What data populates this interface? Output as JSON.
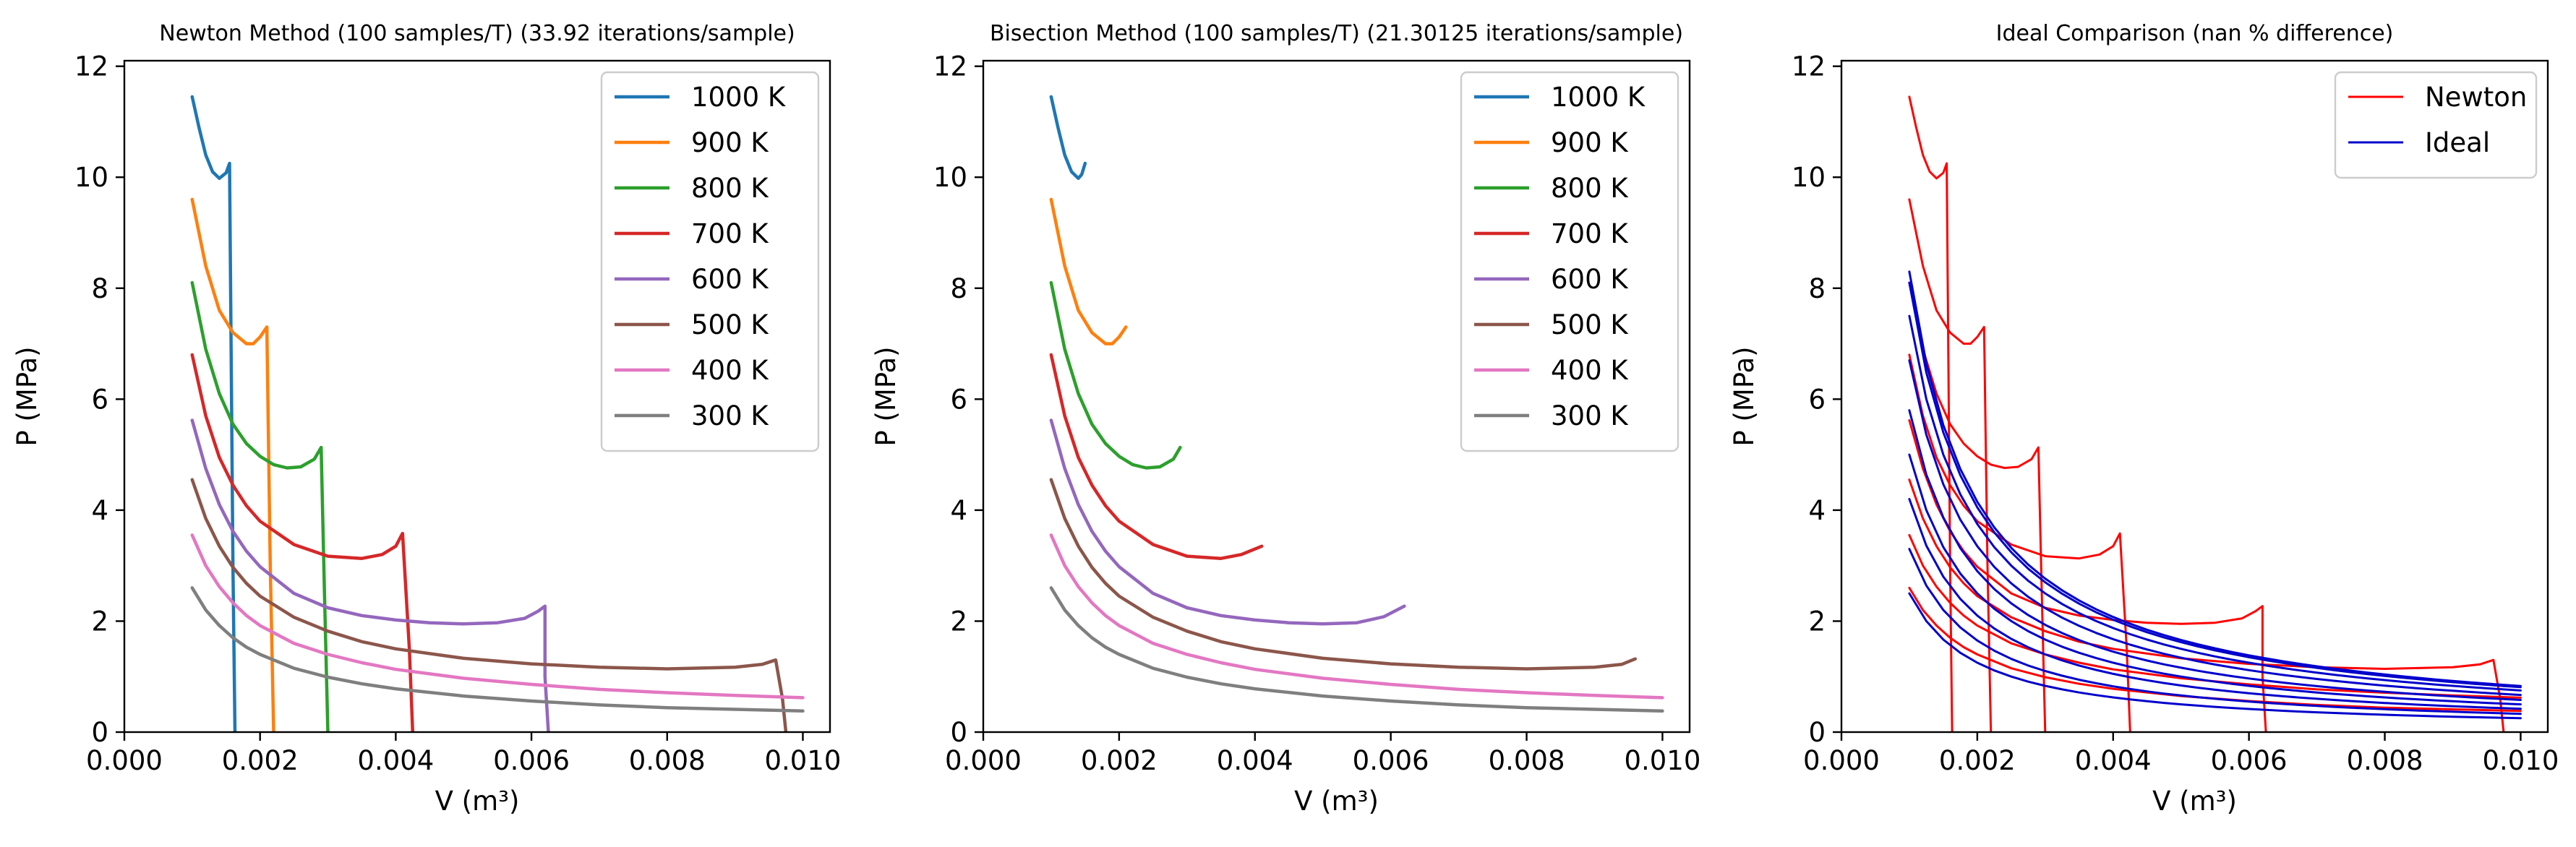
{
  "chart_data": [
    {
      "type": "line",
      "title": "Newton Method (100 samples/T) (33.92 iterations/sample)",
      "xlabel": "V (m³)",
      "ylabel": "P (MPa)",
      "xlim": [
        0,
        0.0104
      ],
      "ylim": [
        0,
        12.1
      ],
      "xticks": [
        "0.000",
        "0.002",
        "0.004",
        "0.006",
        "0.008",
        "0.010"
      ],
      "yticks": [
        "0",
        "2",
        "4",
        "6",
        "8",
        "10",
        "12"
      ],
      "legend": "top-right",
      "grid": false,
      "series": [
        {
          "name": "1000 K",
          "color": "#1f77b4",
          "points": [
            [
              0.001,
              11.45
            ],
            [
              0.0011,
              10.9
            ],
            [
              0.0012,
              10.4
            ],
            [
              0.0013,
              10.1
            ],
            [
              0.0014,
              9.98
            ],
            [
              0.0015,
              10.08
            ],
            [
              0.00155,
              10.25
            ],
            [
              0.0016,
              3.0
            ],
            [
              0.00163,
              0.0
            ]
          ]
        },
        {
          "name": "900 K",
          "color": "#ff7f0e",
          "points": [
            [
              0.001,
              9.6
            ],
            [
              0.0012,
              8.4
            ],
            [
              0.0014,
              7.6
            ],
            [
              0.0016,
              7.2
            ],
            [
              0.0018,
              7.0
            ],
            [
              0.0019,
              7.0
            ],
            [
              0.002,
              7.12
            ],
            [
              0.0021,
              7.3
            ],
            [
              0.00215,
              3.0
            ],
            [
              0.0022,
              0.0
            ]
          ]
        },
        {
          "name": "800 K",
          "color": "#2ca02c",
          "points": [
            [
              0.001,
              8.1
            ],
            [
              0.0012,
              6.9
            ],
            [
              0.0014,
              6.1
            ],
            [
              0.0016,
              5.55
            ],
            [
              0.0018,
              5.2
            ],
            [
              0.002,
              4.97
            ],
            [
              0.0022,
              4.82
            ],
            [
              0.0024,
              4.76
            ],
            [
              0.0026,
              4.78
            ],
            [
              0.0028,
              4.92
            ],
            [
              0.0029,
              5.13
            ],
            [
              0.00295,
              2.5
            ],
            [
              0.003,
              0.0
            ]
          ]
        },
        {
          "name": "700 K",
          "color": "#d62728",
          "points": [
            [
              0.001,
              6.8
            ],
            [
              0.0012,
              5.7
            ],
            [
              0.0014,
              4.95
            ],
            [
              0.0016,
              4.45
            ],
            [
              0.0018,
              4.08
            ],
            [
              0.002,
              3.8
            ],
            [
              0.0025,
              3.38
            ],
            [
              0.003,
              3.17
            ],
            [
              0.0035,
              3.13
            ],
            [
              0.0038,
              3.2
            ],
            [
              0.004,
              3.35
            ],
            [
              0.0041,
              3.58
            ],
            [
              0.0042,
              1.5
            ],
            [
              0.00425,
              0.0
            ]
          ]
        },
        {
          "name": "600 K",
          "color": "#9467bd",
          "points": [
            [
              0.001,
              5.62
            ],
            [
              0.0012,
              4.75
            ],
            [
              0.0014,
              4.1
            ],
            [
              0.0016,
              3.62
            ],
            [
              0.0018,
              3.26
            ],
            [
              0.002,
              2.98
            ],
            [
              0.0025,
              2.5
            ],
            [
              0.003,
              2.24
            ],
            [
              0.0035,
              2.1
            ],
            [
              0.004,
              2.02
            ],
            [
              0.0045,
              1.97
            ],
            [
              0.005,
              1.95
            ],
            [
              0.0055,
              1.97
            ],
            [
              0.0059,
              2.05
            ],
            [
              0.0061,
              2.18
            ],
            [
              0.0062,
              2.27
            ],
            [
              0.0062,
              1.0
            ],
            [
              0.00625,
              0.0
            ]
          ]
        },
        {
          "name": "500 K",
          "color": "#8c564b",
          "points": [
            [
              0.001,
              4.55
            ],
            [
              0.0012,
              3.85
            ],
            [
              0.0014,
              3.35
            ],
            [
              0.0016,
              2.97
            ],
            [
              0.0018,
              2.68
            ],
            [
              0.002,
              2.45
            ],
            [
              0.0025,
              2.07
            ],
            [
              0.003,
              1.82
            ],
            [
              0.0035,
              1.63
            ],
            [
              0.004,
              1.5
            ],
            [
              0.005,
              1.33
            ],
            [
              0.006,
              1.23
            ],
            [
              0.007,
              1.17
            ],
            [
              0.008,
              1.14
            ],
            [
              0.009,
              1.17
            ],
            [
              0.0094,
              1.22
            ],
            [
              0.0096,
              1.3
            ],
            [
              0.0097,
              0.6
            ],
            [
              0.00975,
              0.0
            ]
          ]
        },
        {
          "name": "400 K",
          "color": "#e377c2",
          "points": [
            [
              0.001,
              3.55
            ],
            [
              0.0012,
              3.0
            ],
            [
              0.0014,
              2.62
            ],
            [
              0.0016,
              2.33
            ],
            [
              0.0018,
              2.1
            ],
            [
              0.002,
              1.92
            ],
            [
              0.0025,
              1.6
            ],
            [
              0.003,
              1.4
            ],
            [
              0.0035,
              1.25
            ],
            [
              0.004,
              1.13
            ],
            [
              0.005,
              0.97
            ],
            [
              0.006,
              0.86
            ],
            [
              0.007,
              0.77
            ],
            [
              0.008,
              0.71
            ],
            [
              0.009,
              0.66
            ],
            [
              0.01,
              0.62
            ]
          ]
        },
        {
          "name": "300 K",
          "color": "#7f7f7f",
          "points": [
            [
              0.001,
              2.6
            ],
            [
              0.0012,
              2.2
            ],
            [
              0.0014,
              1.92
            ],
            [
              0.0016,
              1.7
            ],
            [
              0.0018,
              1.53
            ],
            [
              0.002,
              1.4
            ],
            [
              0.0025,
              1.15
            ],
            [
              0.003,
              0.99
            ],
            [
              0.0035,
              0.87
            ],
            [
              0.004,
              0.78
            ],
            [
              0.005,
              0.65
            ],
            [
              0.006,
              0.56
            ],
            [
              0.007,
              0.49
            ],
            [
              0.008,
              0.44
            ],
            [
              0.009,
              0.41
            ],
            [
              0.01,
              0.38
            ]
          ]
        }
      ]
    },
    {
      "type": "line",
      "title": "Bisection Method (100 samples/T) (21.30125 iterations/sample)",
      "xlabel": "V (m³)",
      "ylabel": "P (MPa)",
      "xlim": [
        0,
        0.0104
      ],
      "ylim": [
        0,
        12.1
      ],
      "xticks": [
        "0.000",
        "0.002",
        "0.004",
        "0.006",
        "0.008",
        "0.010"
      ],
      "yticks": [
        "0",
        "2",
        "4",
        "6",
        "8",
        "10",
        "12"
      ],
      "legend": "top-right",
      "grid": false,
      "series": [
        {
          "name": "1000 K",
          "color": "#1f77b4",
          "points": [
            [
              0.001,
              11.45
            ],
            [
              0.0011,
              10.9
            ],
            [
              0.0012,
              10.4
            ],
            [
              0.0013,
              10.1
            ],
            [
              0.0014,
              9.98
            ],
            [
              0.00145,
              10.05
            ],
            [
              0.0015,
              10.25
            ]
          ]
        },
        {
          "name": "900 K",
          "color": "#ff7f0e",
          "points": [
            [
              0.001,
              9.6
            ],
            [
              0.0012,
              8.4
            ],
            [
              0.0014,
              7.6
            ],
            [
              0.0016,
              7.2
            ],
            [
              0.0018,
              7.0
            ],
            [
              0.0019,
              7.0
            ],
            [
              0.002,
              7.12
            ],
            [
              0.0021,
              7.3
            ]
          ]
        },
        {
          "name": "800 K",
          "color": "#2ca02c",
          "points": [
            [
              0.001,
              8.1
            ],
            [
              0.0012,
              6.9
            ],
            [
              0.0014,
              6.1
            ],
            [
              0.0016,
              5.55
            ],
            [
              0.0018,
              5.2
            ],
            [
              0.002,
              4.97
            ],
            [
              0.0022,
              4.82
            ],
            [
              0.0024,
              4.76
            ],
            [
              0.0026,
              4.78
            ],
            [
              0.0028,
              4.92
            ],
            [
              0.0029,
              5.13
            ]
          ]
        },
        {
          "name": "700 K",
          "color": "#d62728",
          "points": [
            [
              0.001,
              6.8
            ],
            [
              0.0012,
              5.7
            ],
            [
              0.0014,
              4.95
            ],
            [
              0.0016,
              4.45
            ],
            [
              0.0018,
              4.08
            ],
            [
              0.002,
              3.8
            ],
            [
              0.0025,
              3.38
            ],
            [
              0.003,
              3.17
            ],
            [
              0.0035,
              3.13
            ],
            [
              0.0038,
              3.2
            ],
            [
              0.0041,
              3.35
            ]
          ]
        },
        {
          "name": "600 K",
          "color": "#9467bd",
          "points": [
            [
              0.001,
              5.62
            ],
            [
              0.0012,
              4.75
            ],
            [
              0.0014,
              4.1
            ],
            [
              0.0016,
              3.62
            ],
            [
              0.0018,
              3.26
            ],
            [
              0.002,
              2.98
            ],
            [
              0.0025,
              2.5
            ],
            [
              0.003,
              2.24
            ],
            [
              0.0035,
              2.1
            ],
            [
              0.004,
              2.02
            ],
            [
              0.0045,
              1.97
            ],
            [
              0.005,
              1.95
            ],
            [
              0.0055,
              1.97
            ],
            [
              0.0059,
              2.08
            ],
            [
              0.0062,
              2.27
            ]
          ]
        },
        {
          "name": "500 K",
          "color": "#8c564b",
          "points": [
            [
              0.001,
              4.55
            ],
            [
              0.0012,
              3.85
            ],
            [
              0.0014,
              3.35
            ],
            [
              0.0016,
              2.97
            ],
            [
              0.0018,
              2.68
            ],
            [
              0.002,
              2.45
            ],
            [
              0.0025,
              2.07
            ],
            [
              0.003,
              1.82
            ],
            [
              0.0035,
              1.63
            ],
            [
              0.004,
              1.5
            ],
            [
              0.005,
              1.33
            ],
            [
              0.006,
              1.23
            ],
            [
              0.007,
              1.17
            ],
            [
              0.008,
              1.14
            ],
            [
              0.009,
              1.17
            ],
            [
              0.0094,
              1.22
            ],
            [
              0.0096,
              1.32
            ]
          ]
        },
        {
          "name": "400 K",
          "color": "#e377c2",
          "points": [
            [
              0.001,
              3.55
            ],
            [
              0.0012,
              3.0
            ],
            [
              0.0014,
              2.62
            ],
            [
              0.0016,
              2.33
            ],
            [
              0.0018,
              2.1
            ],
            [
              0.002,
              1.92
            ],
            [
              0.0025,
              1.6
            ],
            [
              0.003,
              1.4
            ],
            [
              0.0035,
              1.25
            ],
            [
              0.004,
              1.13
            ],
            [
              0.005,
              0.97
            ],
            [
              0.006,
              0.86
            ],
            [
              0.007,
              0.77
            ],
            [
              0.008,
              0.71
            ],
            [
              0.009,
              0.66
            ],
            [
              0.01,
              0.62
            ]
          ]
        },
        {
          "name": "300 K",
          "color": "#7f7f7f",
          "points": [
            [
              0.001,
              2.6
            ],
            [
              0.0012,
              2.2
            ],
            [
              0.0014,
              1.92
            ],
            [
              0.0016,
              1.7
            ],
            [
              0.0018,
              1.53
            ],
            [
              0.002,
              1.4
            ],
            [
              0.0025,
              1.15
            ],
            [
              0.003,
              0.99
            ],
            [
              0.0035,
              0.87
            ],
            [
              0.004,
              0.78
            ],
            [
              0.005,
              0.65
            ],
            [
              0.006,
              0.56
            ],
            [
              0.007,
              0.49
            ],
            [
              0.008,
              0.44
            ],
            [
              0.009,
              0.41
            ],
            [
              0.01,
              0.38
            ]
          ]
        }
      ]
    },
    {
      "type": "line",
      "title": "Ideal Comparison (nan % difference)",
      "xlabel": "V (m³)",
      "ylabel": "P (MPa)",
      "xlim": [
        0,
        0.0104
      ],
      "ylim": [
        0,
        12.1
      ],
      "xticks": [
        "0.000",
        "0.002",
        "0.004",
        "0.006",
        "0.008",
        "0.010"
      ],
      "yticks": [
        "0",
        "2",
        "4",
        "6",
        "8",
        "10",
        "12"
      ],
      "legend": "top-right",
      "grid": false,
      "legend_entries": [
        {
          "name": "Newton",
          "color": "#ff0000"
        },
        {
          "name": "Ideal",
          "color": "#0000cc"
        }
      ],
      "ideal_pv_products": [
        0.0083,
        0.0081,
        0.0075,
        0.0067,
        0.0058,
        0.005,
        0.0042,
        0.0033,
        0.0025
      ],
      "newton_curves_from_panel": 0
    }
  ]
}
